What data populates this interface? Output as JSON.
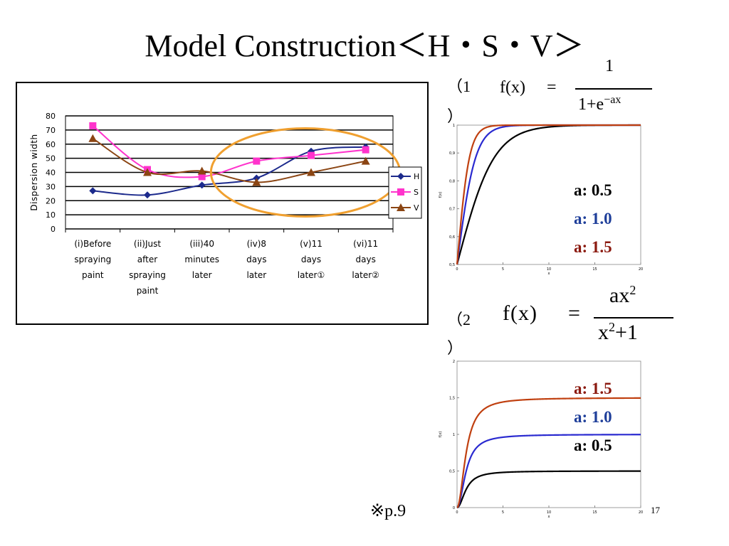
{
  "title": "Model Construction＜H・S・V＞",
  "reference_note": "※p.9",
  "page_number": "17",
  "equations": [
    {
      "number_open": "（1",
      "number_close": "）",
      "lhs": "f(x)",
      "equals": "=",
      "numerator": "1",
      "denominator_base": "1+e",
      "denominator_exp": "−ax"
    },
    {
      "number_open": "（2",
      "number_close": "）",
      "lhs": "f(x)",
      "equals": "=",
      "numerator_base": "ax",
      "numerator_exp": "2",
      "denominator_base": "x",
      "denominator_exp": "2",
      "denominator_tail": "+1"
    }
  ],
  "annotations": {
    "chart1": [
      {
        "text": "a: 0.5",
        "color": "#000000"
      },
      {
        "text": "a: 1.0",
        "color": "#1f3f9a"
      },
      {
        "text": "a: 1.5",
        "color": "#8b1a10"
      }
    ],
    "chart2": [
      {
        "text": "a: 1.5",
        "color": "#8b1a10"
      },
      {
        "text": "a: 1.0",
        "color": "#1f3f9a"
      },
      {
        "text": "a: 0.5",
        "color": "#000000"
      }
    ]
  },
  "chart_data": [
    {
      "type": "line",
      "title": "",
      "xlabel": "",
      "ylabel": "Dispersion width",
      "ylim": [
        0,
        80
      ],
      "yticks": [
        0,
        10,
        20,
        30,
        40,
        50,
        60,
        70,
        80
      ],
      "grid": true,
      "legend": "right",
      "categories": [
        [
          "(i)Before",
          "spraying",
          "paint"
        ],
        [
          "(ii)Just",
          "after",
          "spraying",
          "paint"
        ],
        [
          "(iii)40",
          "minutes",
          "later"
        ],
        [
          "(iv)8",
          "days",
          "later"
        ],
        [
          "(v)11",
          "days",
          "later①"
        ],
        [
          "(vi)11",
          "days",
          "later②"
        ]
      ],
      "series": [
        {
          "name": "H",
          "color": "#1c2a8c",
          "marker": "diamond",
          "values": [
            27,
            24,
            31,
            36,
            55,
            58
          ]
        },
        {
          "name": "S",
          "color": "#ff33cc",
          "marker": "square",
          "values": [
            73,
            42,
            37,
            48,
            52,
            56
          ]
        },
        {
          "name": "V",
          "color": "#8b4513",
          "marker": "triangle",
          "values": [
            64,
            40,
            41,
            33,
            40,
            48
          ]
        }
      ],
      "highlight": {
        "shape": "ellipse",
        "color": "#f0a030",
        "covers_categories": [
          "(iv)8",
          "(vi)11"
        ]
      }
    },
    {
      "type": "line",
      "title": "",
      "formula": "1/(1+exp(-a*x))",
      "xlabel": "x",
      "ylabel": "f(x)",
      "xlim": [
        0,
        20
      ],
      "ylim": [
        0.5,
        1
      ],
      "xticks": [
        0,
        5,
        10,
        15,
        20
      ],
      "yticks": [
        0.5,
        0.6,
        0.7,
        0.8,
        0.9,
        1
      ],
      "ytick_labels": [
        "0,5",
        "0,6",
        "0,7",
        "0,8",
        "0,9",
        "1"
      ],
      "series": [
        {
          "a": 0.5,
          "color": "#000000"
        },
        {
          "a": 1.0,
          "color": "#2a2ad0"
        },
        {
          "a": 1.5,
          "color": "#c04010"
        }
      ]
    },
    {
      "type": "line",
      "title": "",
      "formula": "a*x^2/(x^2+1)",
      "xlabel": "x",
      "ylabel": "f(x)",
      "xlim": [
        0,
        20
      ],
      "ylim": [
        0,
        2
      ],
      "xticks": [
        0,
        5,
        10,
        15,
        20
      ],
      "yticks": [
        0,
        0.5,
        1,
        1.5,
        2
      ],
      "ytick_labels": [
        "0",
        "0,5",
        "1",
        "1,5",
        "2"
      ],
      "series": [
        {
          "a": 0.5,
          "color": "#000000"
        },
        {
          "a": 1.0,
          "color": "#2a2ad0"
        },
        {
          "a": 1.5,
          "color": "#c04010"
        }
      ]
    }
  ]
}
